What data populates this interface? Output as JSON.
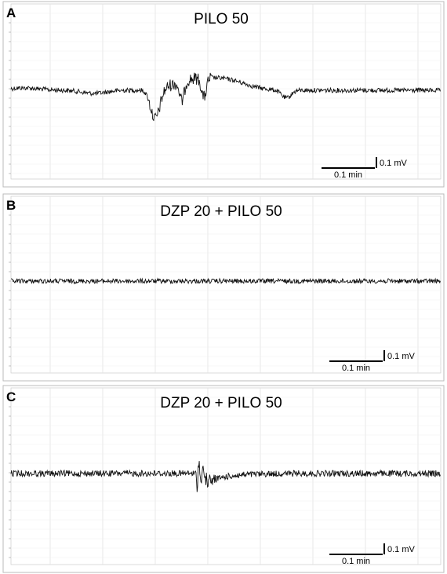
{
  "panels": [
    {
      "label": "A",
      "title": "PILO 50",
      "scale_y": "0.1 mV",
      "scale_x": "0.1 min"
    },
    {
      "label": "B",
      "title": "DZP 20 + PILO 50",
      "scale_y": "0.1 mV",
      "scale_x": "0.1 min"
    },
    {
      "label": "C",
      "title": "DZP 20 + PILO 50",
      "scale_y": "0.1 mV",
      "scale_x": "0.1 min"
    }
  ]
}
